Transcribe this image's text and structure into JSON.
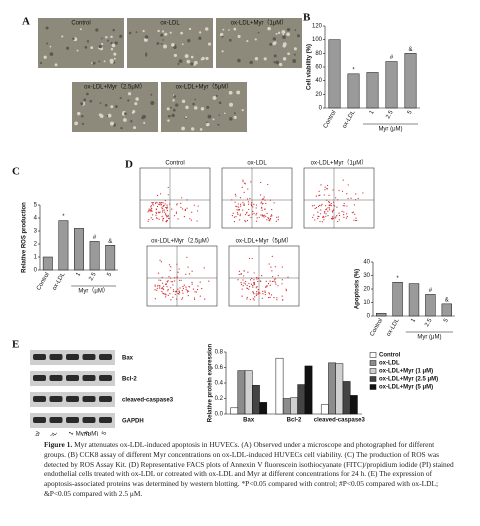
{
  "panel_labels": [
    "A",
    "B",
    "C",
    "D",
    "E"
  ],
  "micrographs": {
    "labels": [
      "Control",
      "ox-LDL",
      "ox-LDL+Myr（1μM）",
      "ox-LDL+Myr（2.5μM）",
      "ox-LDL+Myr（5μM）"
    ]
  },
  "flow": {
    "labels": [
      "Control",
      "ox-LDL",
      "ox-LDL+Myr（1μM）",
      "ox-LDL+Myr（2.5μM）",
      "ox-LDL+Myr（5μM）"
    ]
  },
  "blot": {
    "labels": [
      "Bax",
      "Bcl-2",
      "cleaved-caspase3",
      "GAPDH"
    ],
    "lanes": [
      "Control",
      "ox-LDL",
      "1",
      "2.5",
      "5"
    ],
    "group_label": "Myr(μM)"
  },
  "chart_data": [
    {
      "type": "bar",
      "y_label": "Cell viability (%)",
      "categories": [
        "Control",
        "ox-LDL",
        "1",
        "2.5",
        "5"
      ],
      "values": [
        100,
        50,
        52,
        68,
        80
      ],
      "markers": [
        null,
        "*",
        null,
        "#",
        "&"
      ],
      "color": "#9a9a9a",
      "group_label": "Myr (μM)",
      "ylim": [
        0,
        120
      ],
      "yticks": [
        0,
        20,
        40,
        60,
        80,
        100,
        120
      ]
    },
    {
      "type": "bar",
      "y_label": "Relative ROS production",
      "categories": [
        "Control",
        "ox-LDL",
        "1",
        "2.5",
        "5"
      ],
      "values": [
        1,
        3.8,
        3.2,
        2.2,
        1.9
      ],
      "markers": [
        null,
        "*",
        null,
        "#",
        "&"
      ],
      "color": "#9a9a9a",
      "group_label": "Myr（μM）",
      "ylim": [
        0,
        5
      ],
      "yticks": [
        0,
        1,
        2,
        3,
        4,
        5
      ]
    },
    {
      "type": "bar",
      "y_label": "Apoptosis (%)",
      "categories": [
        "Control",
        "ox-LDL",
        "1",
        "2.5",
        "5"
      ],
      "values": [
        2,
        25,
        24,
        16,
        9
      ],
      "markers": [
        null,
        "*",
        null,
        "#",
        "&"
      ],
      "color": "#9a9a9a",
      "group_label": "Myr (μM)",
      "ylim": [
        0,
        40
      ],
      "yticks": [
        0,
        10,
        20,
        30,
        40
      ]
    },
    {
      "type": "bar",
      "y_label": "Relative protein expression",
      "categories": [
        "Bax",
        "Bcl-2",
        "cleaved-caspase3"
      ],
      "series": [
        {
          "name": "Control",
          "color": "#ffffff",
          "values": [
            0.08,
            0.72,
            0.12
          ]
        },
        {
          "name": "ox-LDL",
          "color": "#8c8c8c",
          "values": [
            0.56,
            0.2,
            0.66
          ]
        },
        {
          "name": "ox-LDL+Myr (1 μM)",
          "color": "#d0d0d0",
          "values": [
            0.56,
            0.21,
            0.65
          ]
        },
        {
          "name": "ox-LDL+Myr (2.5 μM)",
          "color": "#444444",
          "values": [
            0.37,
            0.38,
            0.42
          ]
        },
        {
          "name": "ox-LDL+Myr (5 μM)",
          "color": "#111111",
          "values": [
            0.15,
            0.62,
            0.24
          ]
        }
      ],
      "ylim": [
        0,
        0.8
      ],
      "yticks": [
        {
          "value": 0,
          "label": "0.0"
        },
        0.2,
        0.4,
        0.6,
        0.8
      ]
    }
  ],
  "caption": {
    "lead": "Figure 1.",
    "text": "Myr attenuates ox-LDL-induced apoptosis in HUVECs. (A) Observed under a microscope and photographed for different groups. (B) CCK8 assay of different Myr concentrations on ox-LDL-induced HUVECs cell viability. (C) The production of ROS was detected by ROS Assay Kit. (D) Representative FACS plots of Annexin V fluorescein isothiocyanate (FITC)/propidium iodide (PI) stained endothelial cells treated with ox-LDL or cotreated with ox-LDL and Myr at different concentrations for 24 h. (E) The expression of apoptosis-associated proteins was determined by western blotting. *P<0.05 compared with control; #P<0.05 compared with ox-LDL; &P<0.05 compared with 2.5 μM."
  }
}
